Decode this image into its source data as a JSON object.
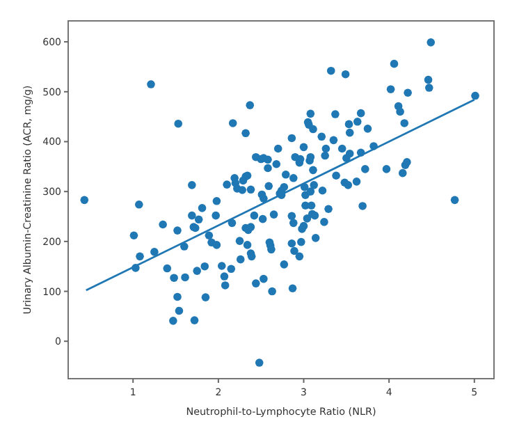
{
  "chart_data": {
    "type": "scatter",
    "xlabel": "Neutrophil-to-Lymphocyte Ratio (NLR)",
    "ylabel": "Urinary Albumin-Creatinine Ratio (ACR, mg/g)",
    "xlim": [
      0.24,
      5.23
    ],
    "ylim": [
      -75,
      642
    ],
    "xticks": [
      1,
      2,
      3,
      4,
      5
    ],
    "yticks": [
      0,
      100,
      200,
      300,
      400,
      500,
      600
    ],
    "grid": false,
    "marker": "circle",
    "series": [
      {
        "color": "#1f77b4",
        "x": [
          0.43,
          1.01,
          1.03,
          1.07,
          1.08,
          1.21,
          1.25,
          1.35,
          1.4,
          1.48,
          1.47,
          1.52,
          1.53,
          1.52,
          1.54,
          1.6,
          1.61,
          1.69,
          1.69,
          1.71,
          1.73,
          1.72,
          1.77,
          1.75,
          1.81,
          1.84,
          1.85,
          1.89,
          1.92,
          1.97,
          1.98,
          1.98,
          2.04,
          2.07,
          2.08,
          2.1,
          2.15,
          2.16,
          2.17,
          2.19,
          2.2,
          2.22,
          2.25,
          2.26,
          2.28,
          2.29,
          2.32,
          2.32,
          2.32,
          2.34,
          2.34,
          2.35,
          2.37,
          2.38,
          2.38,
          2.39,
          2.38,
          2.42,
          2.44,
          2.44,
          2.48,
          2.5,
          2.51,
          2.52,
          2.53,
          2.53,
          2.53,
          2.58,
          2.58,
          2.59,
          2.6,
          2.61,
          2.62,
          2.63,
          2.65,
          2.68,
          2.7,
          2.72,
          2.74,
          2.74,
          2.77,
          2.77,
          2.79,
          2.86,
          2.86,
          2.86,
          2.87,
          2.88,
          2.88,
          2.89,
          2.9,
          2.95,
          2.95,
          2.96,
          2.97,
          2.98,
          3.0,
          3.0,
          3.01,
          3.02,
          3.02,
          3.04,
          3.05,
          3.06,
          3.07,
          3.08,
          3.08,
          3.08,
          3.09,
          3.1,
          3.11,
          3.11,
          3.12,
          3.13,
          3.14,
          3.21,
          3.22,
          3.24,
          3.25,
          3.26,
          3.29,
          3.32,
          3.35,
          3.37,
          3.38,
          3.45,
          3.48,
          3.49,
          3.5,
          3.52,
          3.53,
          3.54,
          3.54,
          3.62,
          3.63,
          3.67,
          3.67,
          3.69,
          3.72,
          3.75,
          3.82,
          3.97,
          4.02,
          4.06,
          4.11,
          4.13,
          4.16,
          4.18,
          4.19,
          4.21,
          4.22,
          4.46,
          4.47,
          4.49,
          4.77,
          5.01
        ],
        "values": [
          283,
          212,
          147,
          274,
          170,
          515,
          179,
          234,
          146,
          127,
          41,
          222,
          436,
          89,
          61,
          190,
          128,
          313,
          252,
          229,
          227,
          42,
          244,
          141,
          267,
          150,
          88,
          212,
          198,
          252,
          281,
          193,
          151,
          130,
          112,
          314,
          145,
          237,
          437,
          327,
          317,
          306,
          201,
          164,
          303,
          322,
          417,
          330,
          227,
          332,
          193,
          223,
          473,
          229,
          176,
          170,
          304,
          252,
          116,
          369,
          -43,
          365,
          294,
          245,
          367,
          286,
          125,
          364,
          347,
          311,
          198,
          192,
          184,
          100,
          254,
          355,
          386,
          296,
          302,
          293,
          309,
          154,
          334,
          407,
          251,
          196,
          106,
          237,
          327,
          181,
          369,
          358,
          170,
          365,
          199,
          225,
          231,
          389,
          309,
          293,
          272,
          246,
          439,
          434,
          362,
          456,
          300,
          369,
          272,
          255,
          343,
          425,
          313,
          252,
          207,
          410,
          302,
          239,
          372,
          386,
          265,
          542,
          403,
          455,
          332,
          386,
          318,
          535,
          367,
          313,
          435,
          418,
          376,
          320,
          440,
          457,
          378,
          271,
          345,
          426,
          391,
          345,
          505,
          556,
          471,
          460,
          337,
          437,
          353,
          359,
          498,
          524,
          508,
          599,
          283,
          492
        ]
      },
      {
        "type": "line",
        "color": "#1f77b4",
        "marker": "none",
        "line_style": "solid",
        "x": [
          0.45,
          5.0
        ],
        "values": [
          102,
          484
        ]
      }
    ]
  }
}
